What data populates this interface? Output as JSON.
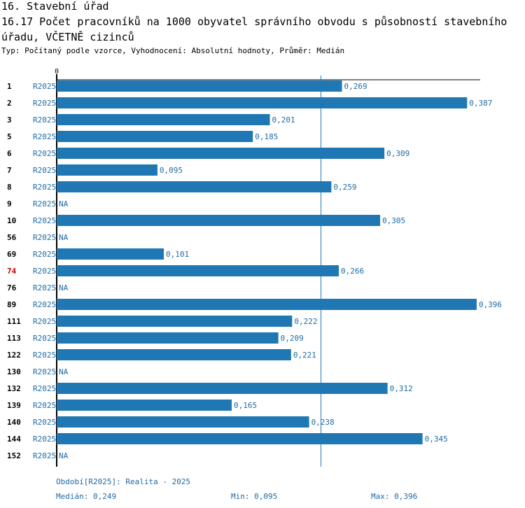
{
  "header": {
    "section_title": "16. Stavební úřad",
    "chart_title": "16.17 Počet pracovníků na 1000 obyvatel správního obvodu s působností stavebního úřadu, VČETNĚ cizinců",
    "subtitle": "Typ: Počítaný podle vzorce, Vyhodnocení: Absolutní hodnoty, Průměr: Medián"
  },
  "colors": {
    "bar": "#1f77b4",
    "label": "#1f6aa5",
    "highlight": "#cc0000",
    "axis": "#000000",
    "median_line": "#1f77b4"
  },
  "chart_data": {
    "type": "bar",
    "orientation": "horizontal",
    "axis_zero_label": "0",
    "xlim": [
      0,
      0.4
    ],
    "series_label": "R2025",
    "categories": [
      "1",
      "2",
      "3",
      "5",
      "6",
      "7",
      "8",
      "9",
      "10",
      "56",
      "69",
      "74",
      "76",
      "89",
      "111",
      "113",
      "122",
      "130",
      "132",
      "139",
      "140",
      "144",
      "152"
    ],
    "values": [
      0.269,
      0.387,
      0.201,
      0.185,
      0.309,
      0.095,
      0.259,
      null,
      0.305,
      null,
      0.101,
      0.266,
      null,
      0.396,
      0.222,
      0.209,
      0.221,
      null,
      0.312,
      0.165,
      0.238,
      0.345,
      null
    ],
    "value_labels": [
      "0,269",
      "0,387",
      "0,201",
      "0,185",
      "0,309",
      "0,095",
      "0,259",
      "NA",
      "0,305",
      "NA",
      "0,101",
      "0,266",
      "NA",
      "0,396",
      "0,222",
      "0,209",
      "0,221",
      "NA",
      "0,312",
      "0,165",
      "0,238",
      "0,345",
      "NA"
    ],
    "highlighted_category": "74",
    "median": 0.249
  },
  "footer": {
    "period": "Období[R2025]: Realita - 2025",
    "median": "Medián: 0,249",
    "min": "Min: 0,095",
    "max": "Max: 0,396"
  }
}
